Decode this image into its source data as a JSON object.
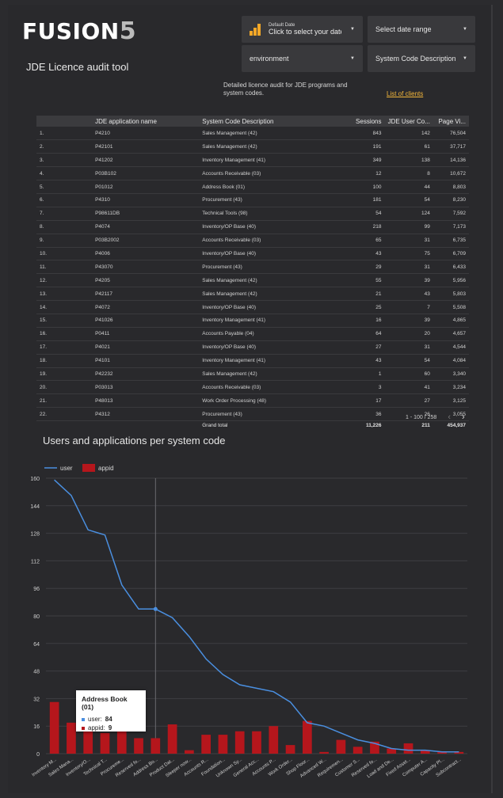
{
  "brand": {
    "logo_text": "FUSION",
    "logo_five": "5"
  },
  "controls": {
    "date": {
      "small": "Default Date",
      "main": "Click to select your date",
      "icon": "bar-chart-icon"
    },
    "date_range": "Select date range",
    "environment": "environment",
    "system_code": "System Code Description"
  },
  "page_title": "JDE Licence audit tool",
  "description": "Detailed licence audit for JDE programs and system codes.",
  "clients_link": "List of clients",
  "table": {
    "headers": [
      "",
      "JDE application name",
      "System Code Description",
      "Sessions",
      "JDE User Co...",
      "Page Vi..."
    ],
    "rows": [
      [
        "1.",
        "P4210",
        "Sales Management (42)",
        "843",
        "142",
        "76,504"
      ],
      [
        "2.",
        "P42101",
        "Sales Management (42)",
        "191",
        "61",
        "37,717"
      ],
      [
        "3.",
        "P41202",
        "Inventory Management (41)",
        "349",
        "138",
        "14,136"
      ],
      [
        "4.",
        "P03B102",
        "Accounts Receivable (03)",
        "12",
        "8",
        "10,672"
      ],
      [
        "5.",
        "P01012",
        "Address Book (01)",
        "100",
        "44",
        "8,803"
      ],
      [
        "6.",
        "P4310",
        "Procurement (43)",
        "181",
        "54",
        "8,230"
      ],
      [
        "7.",
        "P98611DB",
        "Technical Tools (98)",
        "54",
        "124",
        "7,592"
      ],
      [
        "8.",
        "P4074",
        "Inventory/OP Base (40)",
        "218",
        "99",
        "7,173"
      ],
      [
        "9.",
        "P03B2002",
        "Accounts Receivable (03)",
        "65",
        "31",
        "6,735"
      ],
      [
        "10.",
        "P4006",
        "Inventory/OP Base (40)",
        "43",
        "75",
        "6,709"
      ],
      [
        "11.",
        "P43070",
        "Procurement (43)",
        "29",
        "31",
        "6,433"
      ],
      [
        "12.",
        "P4205",
        "Sales Management (42)",
        "55",
        "39",
        "5,956"
      ],
      [
        "13.",
        "P42117",
        "Sales Management (42)",
        "21",
        "43",
        "5,803"
      ],
      [
        "14.",
        "P4072",
        "Inventory/OP Base (40)",
        "25",
        "7",
        "5,508"
      ],
      [
        "15.",
        "P41026",
        "Inventory Management (41)",
        "16",
        "39",
        "4,865"
      ],
      [
        "16.",
        "P0411",
        "Accounts Payable (04)",
        "64",
        "20",
        "4,657"
      ],
      [
        "17.",
        "P4021",
        "Inventory/OP Base (40)",
        "27",
        "31",
        "4,544"
      ],
      [
        "18.",
        "P4101",
        "Inventory Management (41)",
        "43",
        "54",
        "4,084"
      ],
      [
        "19.",
        "P42232",
        "Sales Management (42)",
        "1",
        "60",
        "3,340"
      ],
      [
        "20.",
        "P03013",
        "Accounts Receivable (03)",
        "3",
        "41",
        "3,234"
      ],
      [
        "21.",
        "P48013",
        "Work Order Processing (48)",
        "17",
        "27",
        "3,125"
      ],
      [
        "22.",
        "P4312",
        "Procurement (43)",
        "36",
        "26",
        "3,055"
      ]
    ],
    "footer": {
      "label": "Grand total",
      "sessions": "11,226",
      "users": "211",
      "page_views": "454,937"
    },
    "pagination": "1 - 100 / 258"
  },
  "chart_title": "Users and applications per system code",
  "chart_data": {
    "type": "bar",
    "title": "Users and applications per system code",
    "legend_position": "top-left",
    "y_ticks": [
      0,
      16,
      32,
      48,
      64,
      80,
      96,
      112,
      128,
      144,
      160
    ],
    "ylim": [
      0,
      160
    ],
    "grid": true,
    "categories": [
      "Inventory M...",
      "Sales Mana...",
      "Inventory/O...",
      "Technical T...",
      "Procureme...",
      "Reserved fo...",
      "Address Bo...",
      "Product Dat...",
      "Sleeper now...",
      "Accounts R...",
      "Foundation...",
      "Unknown Sy...",
      "General Acc...",
      "Accounts P...",
      "Work Order...",
      "Shop Floor...",
      "Advanced W...",
      "Requiremen...",
      "Customer S...",
      "Reserved fo...",
      "Load and De...",
      "Fixed Asset...",
      "Computer A...",
      "Capacity Pl...",
      "Subcontract..."
    ],
    "series": [
      {
        "name": "user",
        "type": "line",
        "color": "#4a8fe0",
        "values": [
          159,
          150,
          130,
          127,
          98,
          84,
          84,
          79,
          68,
          55,
          46,
          40,
          38,
          36,
          30,
          18,
          16,
          12,
          8,
          6,
          3,
          2,
          2,
          1,
          1
        ]
      },
      {
        "name": "appid",
        "type": "bar",
        "color": "#b5161c",
        "values": [
          30,
          18,
          13,
          12,
          13,
          9,
          9,
          17,
          2,
          11,
          11,
          13,
          13,
          16,
          5,
          19,
          1,
          8,
          4,
          7,
          3,
          6,
          2,
          1,
          1
        ]
      }
    ]
  },
  "tooltip": {
    "title": "Address Book (01)",
    "user_label": "user:",
    "user_value": "84",
    "appid_label": "appid:",
    "appid_value": "9"
  }
}
